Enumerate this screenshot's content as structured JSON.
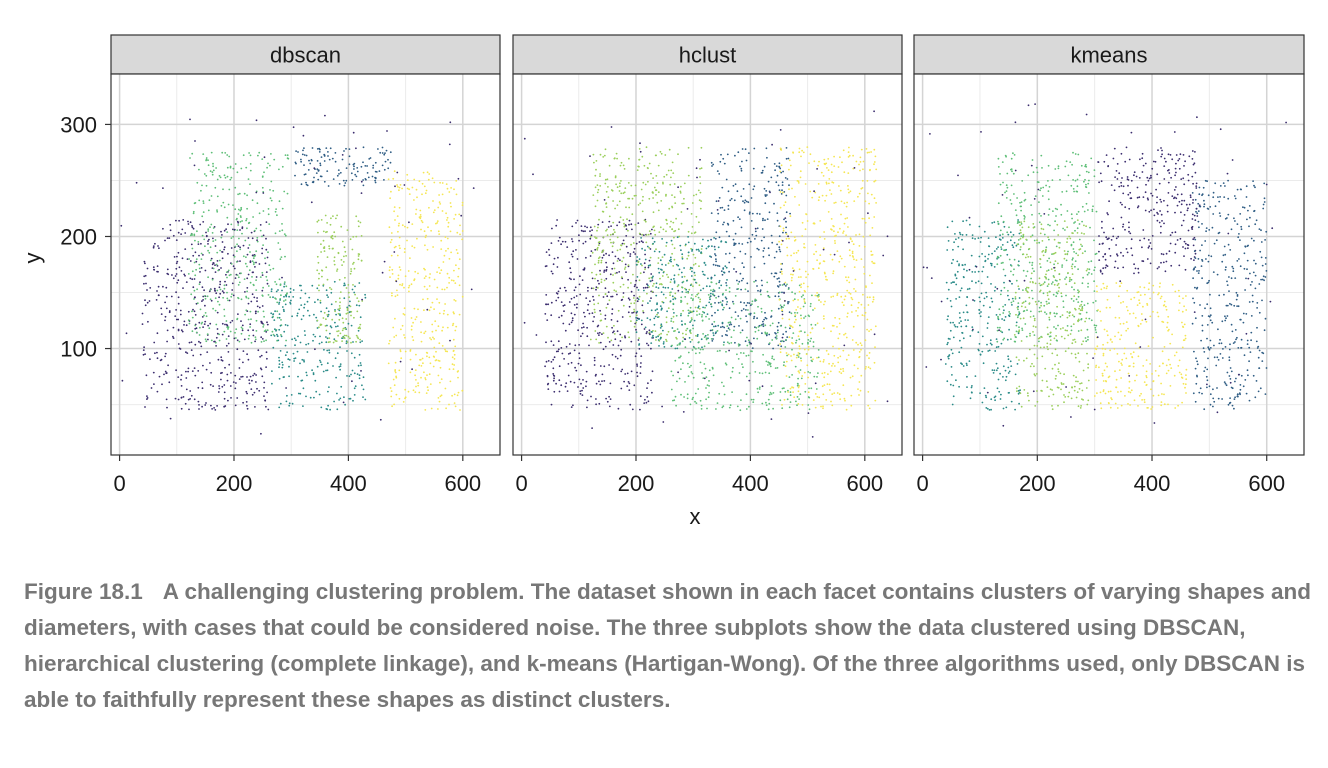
{
  "chart_data": {
    "type": "scatter",
    "xlabel": "x",
    "ylabel": "y",
    "xlim": [
      -15,
      665
    ],
    "ylim": [
      5,
      345
    ],
    "x_ticks": [
      0,
      200,
      400,
      600
    ],
    "y_ticks": [
      100,
      200,
      300
    ],
    "grid": true,
    "legend": "none",
    "facets": [
      {
        "title": "dbscan",
        "clusters": [
          {
            "color": "#3b2d6e",
            "shape": "bottom-left U shape",
            "x_range": [
              40,
              260
            ],
            "y_range": [
              45,
              215
            ]
          },
          {
            "color": "#5fbf78",
            "shape": "upper frame",
            "x_range": [
              120,
              295
            ],
            "y_range": [
              105,
              275
            ]
          },
          {
            "color": "#2f5d84",
            "shape": "top-right rectangle",
            "x_range": [
              305,
              480
            ],
            "y_range": [
              245,
              280
            ]
          },
          {
            "color": "#2a8b88",
            "shape": "bottom middle block",
            "x_range": [
              265,
              430
            ],
            "y_range": [
              45,
              160
            ]
          },
          {
            "color": "#9bcf5c",
            "shape": "middle vertical bar",
            "x_range": [
              345,
              425
            ],
            "y_range": [
              105,
              220
            ]
          },
          {
            "color": "#f5e653",
            "shape": "right ellipse",
            "x_range": [
              470,
              600
            ],
            "y_range": [
              45,
              260
            ]
          }
        ]
      },
      {
        "title": "hclust",
        "clusters": [
          {
            "color": "#3b2d6e",
            "shape": "left column and bottom",
            "x_range": [
              40,
              230
            ],
            "y_range": [
              45,
              215
            ]
          },
          {
            "color": "#9bcf5c",
            "shape": "upper frame",
            "x_range": [
              120,
              315
            ],
            "y_range": [
              105,
              280
            ]
          },
          {
            "color": "#2f5d84",
            "shape": "top right block and middle",
            "x_range": [
              330,
              470
            ],
            "y_range": [
              100,
              280
            ]
          },
          {
            "color": "#2a8b88",
            "shape": "middle pieces",
            "x_range": [
              200,
              360
            ],
            "y_range": [
              100,
              200
            ]
          },
          {
            "color": "#5fbf78",
            "shape": "bottom middle",
            "x_range": [
              260,
              520
            ],
            "y_range": [
              45,
              160
            ]
          },
          {
            "color": "#f5e653",
            "shape": "right region",
            "x_range": [
              450,
              620
            ],
            "y_range": [
              45,
              280
            ]
          }
        ]
      },
      {
        "title": "kmeans",
        "clusters": [
          {
            "color": "#2a8b88",
            "shape": "left column",
            "x_range": [
              40,
              170
            ],
            "y_range": [
              45,
              215
            ]
          },
          {
            "color": "#5fbf78",
            "shape": "top left frame",
            "x_range": [
              130,
              305
            ],
            "y_range": [
              105,
              275
            ]
          },
          {
            "color": "#9bcf5c",
            "shape": "center bars",
            "x_range": [
              160,
              290
            ],
            "y_range": [
              45,
              215
            ]
          },
          {
            "color": "#3b2d6e",
            "shape": "top right block and center",
            "x_range": [
              305,
              480
            ],
            "y_range": [
              165,
              280
            ]
          },
          {
            "color": "#f5e653",
            "shape": "bottom center",
            "x_range": [
              300,
              460
            ],
            "y_range": [
              45,
              160
            ]
          },
          {
            "color": "#2f5d84",
            "shape": "right column",
            "x_range": [
              470,
              600
            ],
            "y_range": [
              45,
              250
            ]
          }
        ]
      }
    ]
  },
  "caption": {
    "number": "Figure 18.1",
    "text": "A challenging clustering problem. The dataset shown in each facet contains clusters of varying shapes and diameters, with cases that could be considered noise. The three subplots show the data clustered using DBSCAN, hierarchical clustering (complete linkage), and k-means (Hartigan-Wong). Of the three algorithms used, only DBSCAN is able to faithfully represent these shapes as distinct clusters."
  }
}
